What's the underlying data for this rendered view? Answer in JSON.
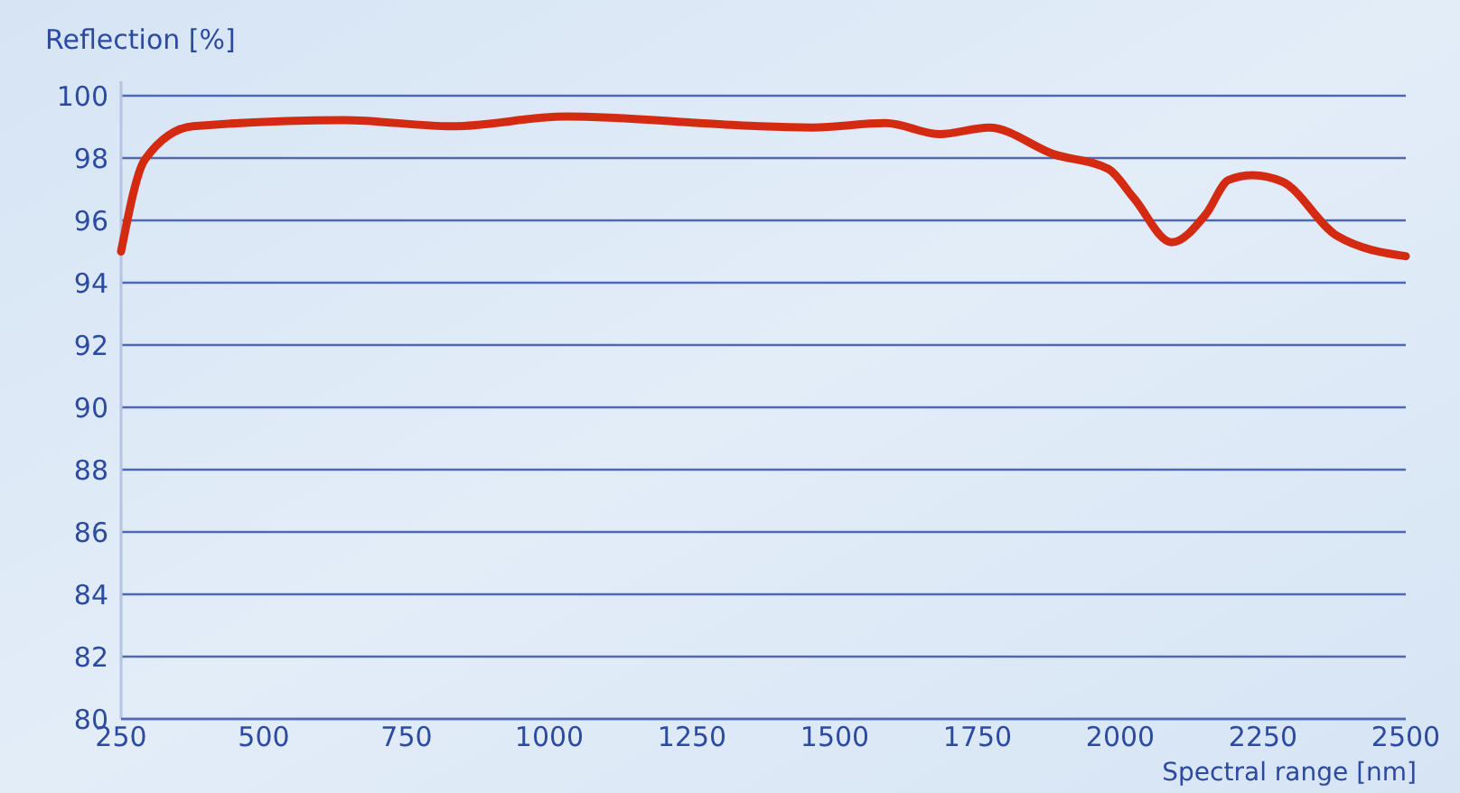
{
  "chart_data": {
    "type": "line",
    "ylabel": "Reflection [%]",
    "xlabel": "Spectral range [nm]",
    "x": [
      250,
      292,
      376,
      640,
      830,
      1029,
      1304,
      1368,
      1462,
      1589,
      1684,
      1770,
      1884,
      1979,
      2023,
      2090,
      2150,
      2190,
      2232,
      2284,
      2379,
      2500
    ],
    "series": [
      {
        "color": "#d42a12",
        "values": [
          95.0,
          97.96,
          99.02,
          99.22,
          99.02,
          99.33,
          99.08,
          99.02,
          98.98,
          99.12,
          98.77,
          98.98,
          98.12,
          97.65,
          96.73,
          95.3,
          96.2,
          97.3,
          97.45,
          97.24,
          95.51,
          94.85
        ]
      }
    ],
    "xlim": [
      250,
      2500
    ],
    "xticks": [
      250,
      500,
      750,
      1000,
      1250,
      1500,
      1750,
      2000,
      2250,
      2500
    ],
    "ylim": [
      80,
      100
    ],
    "yticks": [
      80,
      82,
      84,
      86,
      88,
      90,
      92,
      94,
      96,
      98,
      100
    ],
    "grid": "y",
    "marker": "none",
    "line_style": "solid"
  }
}
